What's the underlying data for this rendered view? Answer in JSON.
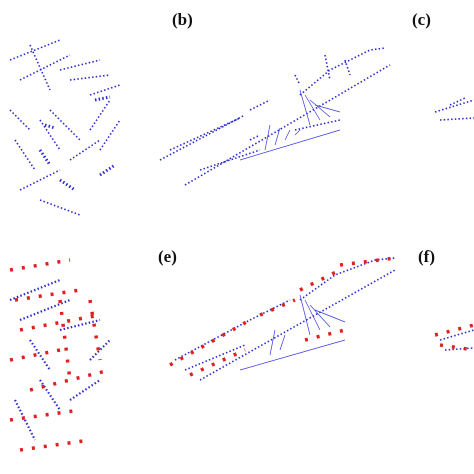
{
  "panel_labels": [
    "(b)",
    "(c)",
    "(e)",
    "(f)"
  ]
}
